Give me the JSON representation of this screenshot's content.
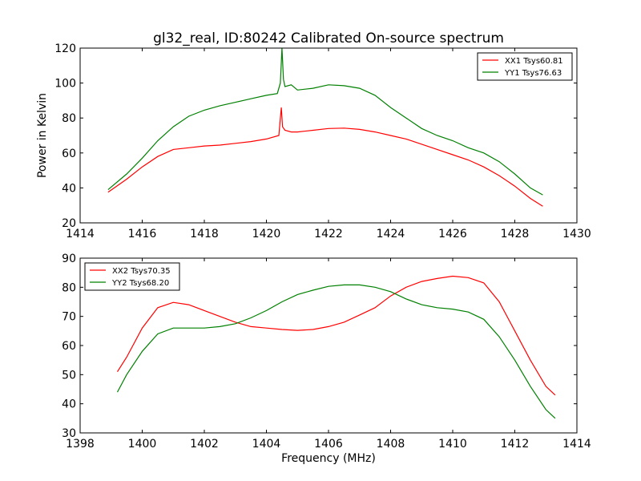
{
  "chart_data": [
    {
      "type": "line",
      "title": "gl32_real, ID:80242 Calibrated On-source spectrum",
      "xlabel": "",
      "ylabel": "Power in Kelvin",
      "xlim": [
        1414,
        1430
      ],
      "ylim": [
        20,
        120
      ],
      "xticks": [
        1414,
        1416,
        1418,
        1420,
        1422,
        1424,
        1426,
        1428,
        1430
      ],
      "yticks": [
        20,
        40,
        60,
        80,
        100,
        120
      ],
      "legend_position": "top-right",
      "series": [
        {
          "name": "XX1 Tsys60.81",
          "color": "#ff0000",
          "x": [
            1414.9,
            1415.5,
            1416.0,
            1416.5,
            1417.0,
            1417.5,
            1418.0,
            1418.5,
            1419.0,
            1419.5,
            1420.0,
            1420.4,
            1420.48,
            1420.52,
            1420.6,
            1420.8,
            1421.0,
            1421.5,
            1422.0,
            1422.5,
            1423.0,
            1423.5,
            1424.0,
            1424.5,
            1425.0,
            1425.5,
            1426.0,
            1426.5,
            1427.0,
            1427.5,
            1428.0,
            1428.5,
            1428.9
          ],
          "y": [
            37.5,
            45,
            52,
            58,
            62,
            63,
            64,
            64.5,
            65.5,
            66.5,
            68,
            70,
            86,
            75,
            73,
            72,
            72,
            73,
            74,
            74.2,
            73.5,
            72,
            70,
            68,
            65,
            62,
            59,
            56,
            52,
            47,
            41,
            34,
            29.5
          ]
        },
        {
          "name": "YY1 Tsys76.63",
          "color": "#008000",
          "x": [
            1414.9,
            1415.5,
            1416.0,
            1416.5,
            1417.0,
            1417.5,
            1418.0,
            1418.5,
            1419.0,
            1419.5,
            1420.0,
            1420.35,
            1420.45,
            1420.5,
            1420.55,
            1420.6,
            1420.8,
            1421.0,
            1421.5,
            1422.0,
            1422.5,
            1423.0,
            1423.5,
            1424.0,
            1424.5,
            1425.0,
            1425.5,
            1426.0,
            1426.5,
            1427.0,
            1427.5,
            1428.0,
            1428.5,
            1428.9
          ],
          "y": [
            39,
            48,
            57,
            67,
            75,
            81,
            84.5,
            87,
            89,
            91,
            93,
            94,
            100,
            120,
            102,
            98,
            99,
            96,
            97,
            99,
            98.5,
            97,
            93,
            86,
            80,
            74,
            70,
            67,
            63,
            60,
            55,
            48,
            40,
            36
          ]
        }
      ]
    },
    {
      "type": "line",
      "title": "",
      "xlabel": "Frequency (MHz)",
      "ylabel": "",
      "xlim": [
        1398,
        1414
      ],
      "ylim": [
        30,
        90
      ],
      "xticks": [
        1398,
        1400,
        1402,
        1404,
        1406,
        1408,
        1410,
        1412,
        1414
      ],
      "yticks": [
        30,
        40,
        50,
        60,
        70,
        80,
        90
      ],
      "legend_position": "top-left",
      "series": [
        {
          "name": "XX2 Tsys70.35",
          "color": "#ff0000",
          "x": [
            1399.2,
            1399.5,
            1400.0,
            1400.5,
            1401.0,
            1401.5,
            1402.0,
            1402.5,
            1403.0,
            1403.5,
            1404.0,
            1404.5,
            1405.0,
            1405.5,
            1406.0,
            1406.5,
            1407.0,
            1407.5,
            1408.0,
            1408.5,
            1409.0,
            1409.5,
            1410.0,
            1410.5,
            1411.0,
            1411.5,
            1412.0,
            1412.5,
            1413.0,
            1413.3
          ],
          "y": [
            51,
            56,
            66,
            73,
            74.8,
            74,
            72,
            70,
            68,
            66.5,
            66,
            65.5,
            65.2,
            65.5,
            66.5,
            68,
            70.5,
            73,
            77,
            80,
            82,
            83,
            83.8,
            83.3,
            81.5,
            75,
            65,
            55,
            46,
            43
          ]
        },
        {
          "name": "YY2 Tsys68.20",
          "color": "#008000",
          "x": [
            1399.2,
            1399.5,
            1400.0,
            1400.5,
            1401.0,
            1401.5,
            1402.0,
            1402.5,
            1403.0,
            1403.5,
            1404.0,
            1404.5,
            1405.0,
            1405.5,
            1406.0,
            1406.5,
            1407.0,
            1407.5,
            1408.0,
            1408.5,
            1409.0,
            1409.5,
            1410.0,
            1410.5,
            1411.0,
            1411.5,
            1412.0,
            1412.5,
            1413.0,
            1413.3
          ],
          "y": [
            44,
            50,
            58,
            64,
            66,
            66,
            66,
            66.5,
            67.5,
            69.5,
            72,
            75,
            77.5,
            79,
            80.3,
            80.8,
            80.8,
            80,
            78.5,
            76,
            74,
            73,
            72.5,
            71.5,
            69,
            63,
            55,
            46,
            38,
            35
          ]
        }
      ]
    }
  ]
}
